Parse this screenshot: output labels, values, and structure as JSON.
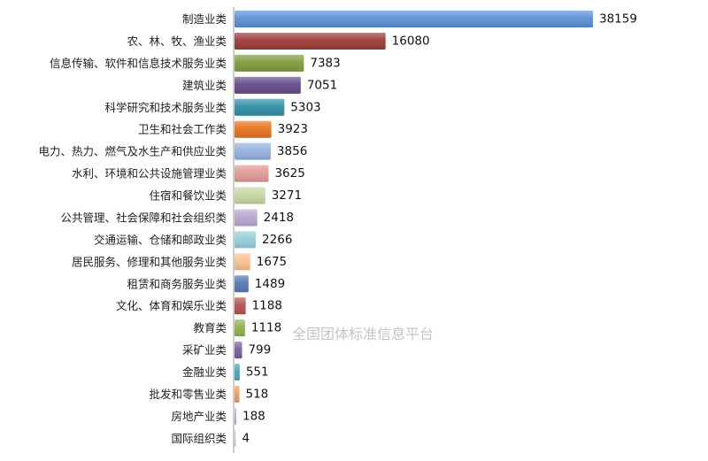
{
  "watermark": "全国团体标准信息平台",
  "chart_data": {
    "type": "bar",
    "orientation": "horizontal",
    "categories": [
      "制造业类",
      "农、林、牧、渔业类",
      "信息传输、软件和信息技术服务业类",
      "建筑业类",
      "科学研究和技术服务业类",
      "卫生和社会工作类",
      "电力、热力、燃气及水生产和供应业类",
      "水利、环境和公共设施管理业类",
      "住宿和餐饮业类",
      "公共管理、社会保障和社会组织类",
      "交通运输、仓储和邮政业类",
      "居民服务、修理和其他服务业类",
      "租赁和商务服务业类",
      "文化、体育和娱乐业类",
      "教育类",
      "采矿业类",
      "金融业类",
      "批发和零售业类",
      "房地产业类",
      "国际组织类"
    ],
    "values": [
      38159,
      16080,
      7383,
      7051,
      5303,
      3923,
      3856,
      3625,
      3271,
      2418,
      2266,
      1675,
      1489,
      1188,
      1118,
      799,
      551,
      518,
      188,
      4
    ],
    "colors": [
      "#5b8fd6",
      "#9b3a38",
      "#7f9b3e",
      "#65498a",
      "#2f8da4",
      "#e8731c",
      "#92b1de",
      "#df9895",
      "#c4d6a0",
      "#b7a6cf",
      "#93cddd",
      "#f8c08c",
      "#5577b0",
      "#b5504d",
      "#8fb04f",
      "#7a5e9e",
      "#4ba3c2",
      "#f09a5a",
      "#a3b8d8",
      "#c9c9c9"
    ],
    "xlim": [
      0,
      38159
    ],
    "grid": false,
    "legend": "none",
    "data_labels": true
  }
}
